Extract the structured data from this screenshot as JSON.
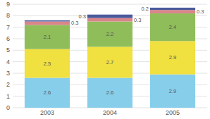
{
  "chart_data": {
    "type": "bar",
    "stacked": true,
    "grid": true,
    "data_labels": true,
    "categories": [
      "2003",
      "2004",
      "2005"
    ],
    "series": [
      {
        "color": "#87CEEB",
        "values": [
          2.6,
          2.6,
          2.9
        ]
      },
      {
        "color": "#F0E040",
        "values": [
          2.5,
          2.7,
          2.9
        ]
      },
      {
        "color": "#8FBD5A",
        "values": [
          2.1,
          2.2,
          2.4
        ]
      },
      {
        "color": "#D9858A",
        "values": [
          0.3,
          0.3,
          0.3
        ]
      },
      {
        "color": "#4B5A9B",
        "values": [
          0.1,
          0.3,
          0.2
        ],
        "value_labels": [
          null,
          "0.3",
          "0.2"
        ]
      }
    ],
    "ylim": [
      0,
      9
    ],
    "yticks": [
      0,
      1,
      2,
      3,
      4,
      5,
      6,
      7,
      8,
      9
    ]
  }
}
